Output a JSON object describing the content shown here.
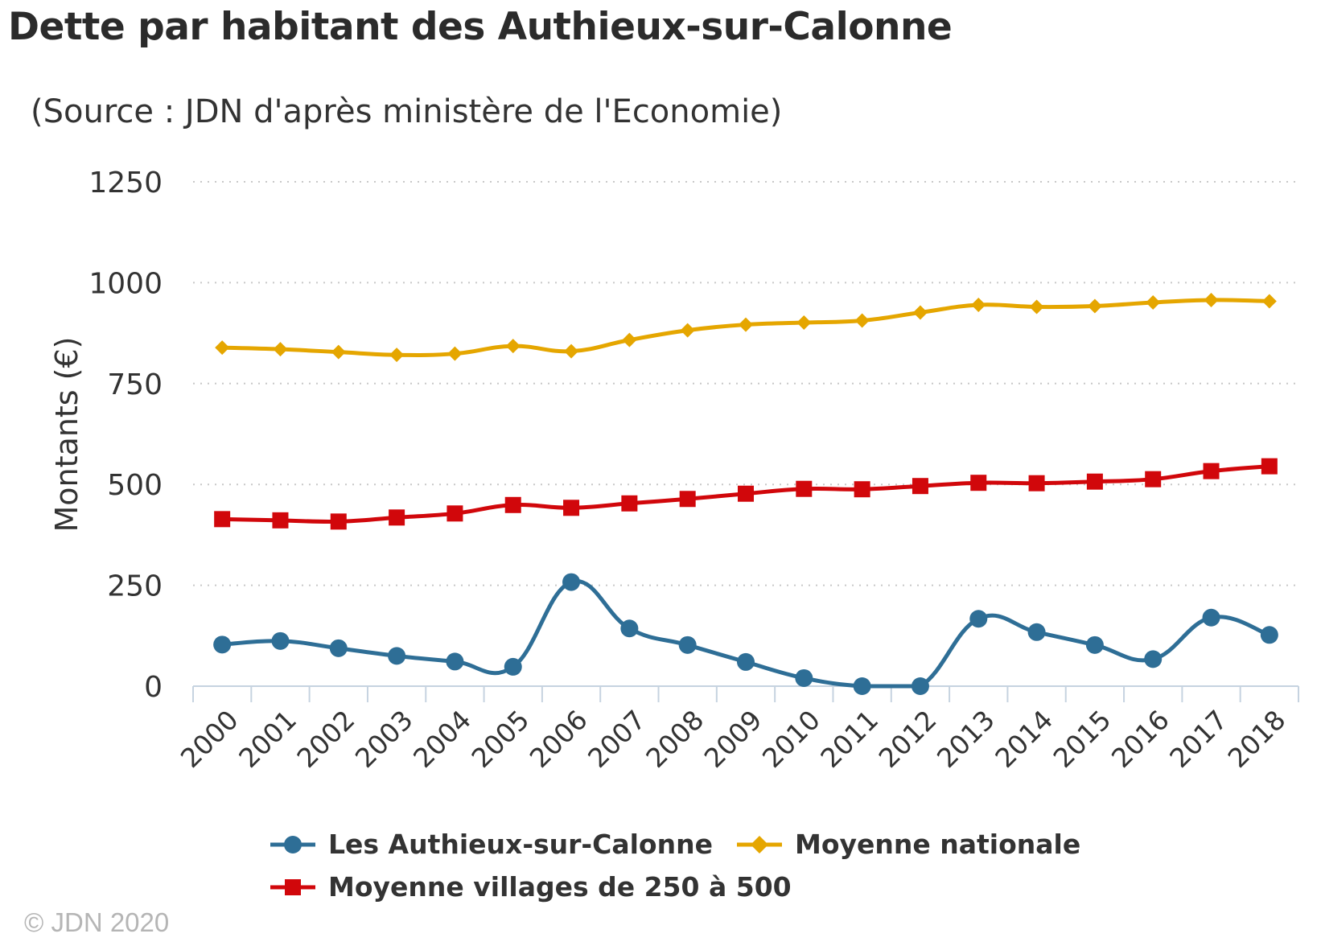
{
  "title": "Dette par habitant des Authieux-sur-Calonne",
  "subtitle": "(Source : JDN d'après ministère de l'Economie)",
  "copyright": "© JDN 2020",
  "chart_data": {
    "type": "line",
    "x": [
      "2000",
      "2001",
      "2002",
      "2003",
      "2004",
      "2005",
      "2006",
      "2007",
      "2008",
      "2009",
      "2010",
      "2011",
      "2012",
      "2013",
      "2014",
      "2015",
      "2016",
      "2017",
      "2018"
    ],
    "ylabel": "Montants (€)",
    "ylim": [
      0,
      1250
    ],
    "yticks": [
      "0",
      "250",
      "500",
      "750",
      "1000",
      "1250"
    ],
    "grid": true,
    "legend_position": "bottom",
    "series": [
      {
        "name": "Les Authieux-sur-Calonne",
        "color": "#2e6e96",
        "marker": "circle",
        "values": [
          103,
          112,
          94,
          75,
          61,
          48,
          258,
          143,
          102,
          60,
          20,
          0,
          0,
          167,
          134,
          102,
          67,
          170,
          127
        ]
      },
      {
        "name": "Moyenne nationale",
        "color": "#e5a600",
        "marker": "diamond",
        "values": [
          839,
          835,
          828,
          821,
          824,
          843,
          830,
          858,
          882,
          896,
          901,
          906,
          926,
          945,
          940,
          942,
          951,
          957,
          954
        ]
      },
      {
        "name": "Moyenne villages de 250 à 500",
        "color": "#d1070b",
        "marker": "square",
        "values": [
          414,
          411,
          408,
          418,
          428,
          449,
          442,
          453,
          464,
          477,
          489,
          488,
          496,
          504,
          503,
          507,
          513,
          533,
          545
        ]
      }
    ]
  }
}
